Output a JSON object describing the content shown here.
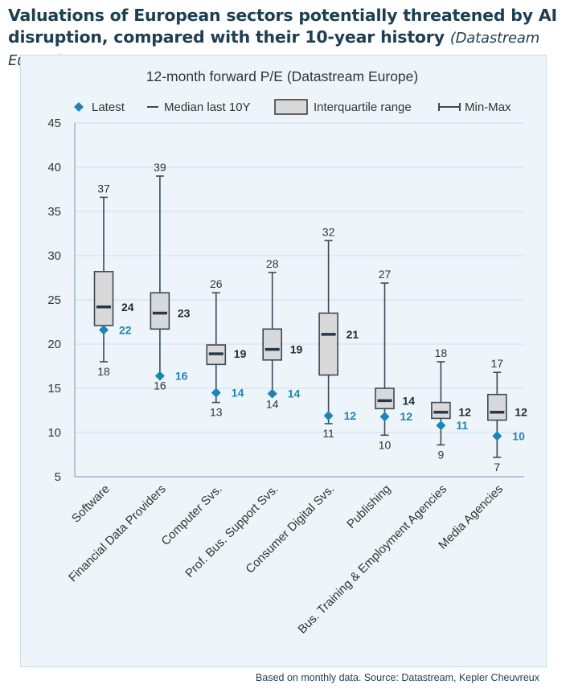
{
  "title": {
    "main": "Valuations of European sectors potentially threatened by AI disruption, compared with their 10-year history",
    "source": "(Datastream Europe)"
  },
  "footer": "Based on monthly data. Source: Datastream, Kepler Cheuvreux",
  "colors": {
    "title": "#1d3f52",
    "panel": "#eef5fa",
    "box_fill": "#d9d9d9",
    "line": "#3a4a55",
    "latest": "#1a86b8",
    "grid": "#cfe0ea"
  },
  "chart_data": {
    "type": "boxplot",
    "title": "12-month forward P/E (Datastream Europe)",
    "ylim": [
      5,
      45
    ],
    "yticks": [
      5,
      10,
      15,
      20,
      25,
      30,
      35,
      40,
      45
    ],
    "grid": true,
    "legend_position": "top",
    "legend": {
      "latest": "Latest",
      "median": "Median last 10Y",
      "iqr": "Interquartile range",
      "minmax": "Min-Max"
    },
    "categories": [
      "Software",
      "Financial Data Providers",
      "Computer Svs.",
      "Prof. Bus. Support Svs.",
      "Consumer Digital Svs.",
      "Publishing",
      "Bus. Training & Employment Agencies",
      "Media Agencies"
    ],
    "series": [
      {
        "min": 18.0,
        "q1": 22.1,
        "median": 24.2,
        "q3": 28.2,
        "max": 36.6,
        "latest": 21.6,
        "min_label": "18",
        "max_label": "37",
        "median_label": "24",
        "latest_label": "22"
      },
      {
        "min": 16.4,
        "q1": 21.7,
        "median": 23.5,
        "q3": 25.8,
        "max": 39.0,
        "latest": 16.4,
        "min_label": "16",
        "max_label": "39",
        "median_label": "23",
        "latest_label": "16"
      },
      {
        "min": 13.4,
        "q1": 17.7,
        "median": 18.9,
        "q3": 19.9,
        "max": 25.8,
        "latest": 14.5,
        "min_label": "13",
        "max_label": "26",
        "median_label": "19",
        "latest_label": "14"
      },
      {
        "min": 14.3,
        "q1": 18.2,
        "median": 19.4,
        "q3": 21.7,
        "max": 28.1,
        "latest": 14.4,
        "min_label": "14",
        "max_label": "28",
        "median_label": "19",
        "latest_label": "14"
      },
      {
        "min": 11.0,
        "q1": 16.5,
        "median": 21.1,
        "q3": 23.5,
        "max": 31.7,
        "latest": 11.9,
        "min_label": "11",
        "max_label": "32",
        "median_label": "21",
        "latest_label": "12"
      },
      {
        "min": 9.7,
        "q1": 12.7,
        "median": 13.6,
        "q3": 15.0,
        "max": 26.9,
        "latest": 11.8,
        "min_label": "10",
        "max_label": "27",
        "median_label": "14",
        "latest_label": "12"
      },
      {
        "min": 8.6,
        "q1": 11.6,
        "median": 12.3,
        "q3": 13.4,
        "max": 18.0,
        "latest": 10.8,
        "min_label": "9",
        "max_label": "18",
        "median_label": "12",
        "latest_label": "11"
      },
      {
        "min": 7.2,
        "q1": 11.4,
        "median": 12.3,
        "q3": 14.3,
        "max": 16.8,
        "latest": 9.6,
        "min_label": "7",
        "max_label": "17",
        "median_label": "12",
        "latest_label": "10"
      }
    ]
  }
}
